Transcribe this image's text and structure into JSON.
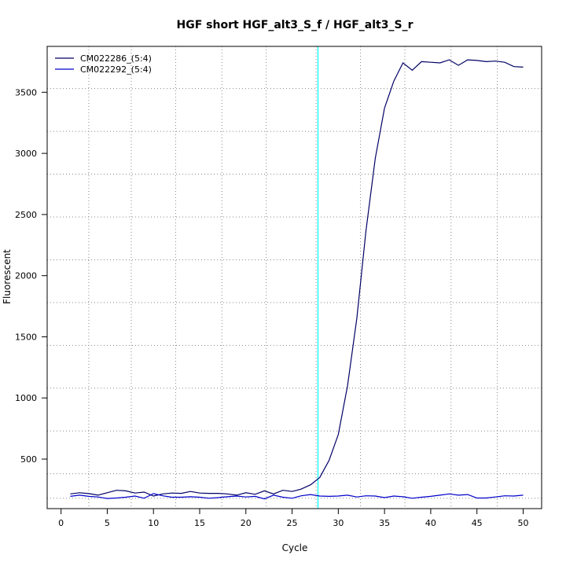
{
  "chart_data": {
    "type": "line",
    "title": "HGF short HGF_alt3_S_f / HGF_alt3_S_r",
    "xlabel": "Cycle",
    "ylabel": "Fluorescent",
    "xlim": [
      -1.5,
      52
    ],
    "ylim": [
      95,
      3875
    ],
    "x_ticks": [
      0,
      5,
      10,
      15,
      20,
      25,
      30,
      35,
      40,
      45,
      50
    ],
    "y_ticks": [
      500,
      1000,
      1500,
      2000,
      2500,
      3000,
      3500
    ],
    "grid_x": [
      3,
      7.6,
      12.4,
      17.4,
      22.2,
      27.6,
      32.4,
      37.2,
      42.2,
      47.2
    ],
    "grid_y": [
      180,
      380,
      730,
      1080,
      1430,
      1780,
      2130,
      2480,
      2830,
      3180,
      3530
    ],
    "threshold_x": 27.8,
    "threshold_color": "#00ffff",
    "grid": true,
    "legend_position": "top-left",
    "series": [
      {
        "name": "CM022286_(5:4)",
        "color": "#000066",
        "x": [
          1,
          2,
          3,
          4,
          5,
          6,
          7,
          8,
          9,
          10,
          11,
          12,
          13,
          14,
          15,
          16,
          17,
          18,
          19,
          20,
          21,
          22,
          23,
          24,
          25,
          26,
          27,
          28,
          29,
          30,
          31,
          32,
          33,
          34,
          35,
          36,
          37,
          38,
          39,
          40,
          41,
          42,
          43,
          44,
          45,
          46,
          47,
          48,
          49,
          50
        ],
        "values": [
          215,
          225,
          218,
          205,
          225,
          245,
          240,
          222,
          230,
          198,
          215,
          222,
          220,
          235,
          222,
          220,
          220,
          215,
          205,
          225,
          212,
          240,
          215,
          245,
          235,
          255,
          290,
          350,
          490,
          700,
          1100,
          1650,
          2370,
          2960,
          3370,
          3590,
          3740,
          3680,
          3750,
          3745,
          3740,
          3765,
          3720,
          3765,
          3760,
          3750,
          3755,
          3745,
          3710,
          3705
        ]
      },
      {
        "name": "CM022292_(5:4)",
        "color": "#0000cc",
        "x": [
          1,
          2,
          3,
          4,
          5,
          6,
          7,
          8,
          9,
          10,
          11,
          12,
          13,
          14,
          15,
          16,
          17,
          18,
          19,
          20,
          21,
          22,
          23,
          24,
          25,
          26,
          27,
          28,
          29,
          30,
          31,
          32,
          33,
          34,
          35,
          36,
          37,
          38,
          39,
          40,
          41,
          42,
          43,
          44,
          45,
          46,
          47,
          48,
          49,
          50
        ],
        "values": [
          195,
          205,
          195,
          190,
          178,
          182,
          188,
          198,
          180,
          218,
          200,
          188,
          188,
          192,
          188,
          180,
          185,
          192,
          198,
          190,
          195,
          175,
          205,
          188,
          180,
          200,
          210,
          198,
          195,
          198,
          205,
          190,
          200,
          198,
          185,
          198,
          192,
          180,
          188,
          195,
          205,
          215,
          205,
          210,
          182,
          182,
          190,
          200,
          198,
          205
        ]
      }
    ]
  }
}
